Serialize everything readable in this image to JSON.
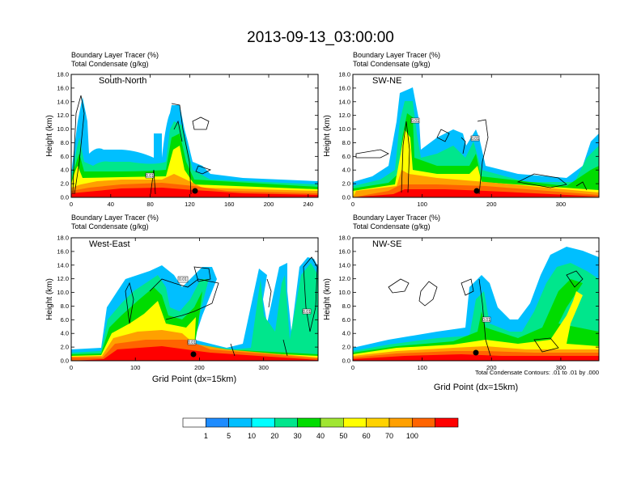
{
  "figure": {
    "title": "2013-09-13_03:00:00",
    "xlabel": "Grid Point (dx=15km)",
    "contour_note": "Total Condensate Contours: .01 to .01 by .000"
  },
  "colorbar": {
    "colors": [
      "#ffffff",
      "#1e8cff",
      "#00bfff",
      "#00ffff",
      "#00e68c",
      "#00dc00",
      "#a0e632",
      "#ffff00",
      "#ffd200",
      "#ffa000",
      "#ff6400",
      "#ff0000"
    ],
    "labels": [
      "1",
      "5",
      "10",
      "20",
      "30",
      "40",
      "50",
      "60",
      "70",
      "100"
    ]
  },
  "panels": [
    {
      "id": "south-north",
      "label": "South-North",
      "line1": "Boundary Layer Tracer   (%)",
      "line2": "Total Condensate   (g/kg)",
      "xticks": [
        "0",
        "40",
        "80",
        "120",
        "160",
        "200",
        "240"
      ],
      "xmax": 250,
      "yticks": [
        "0.0",
        "2.0",
        "4.0",
        "6.0",
        "8.0",
        "10.0",
        "12.0",
        "14.0",
        "16.0",
        "18.0"
      ],
      "ylabel": "Height (km)",
      "contour_labels": [
        "0.01"
      ],
      "dot_x": 125
    },
    {
      "id": "sw-ne",
      "label": "SW-NE",
      "line1": "Boundary Layer Tracer   (%)",
      "line2": "Total Condensate   (g/kg)",
      "xticks": [
        "0",
        "100",
        "200",
        "300"
      ],
      "xmax": 355,
      "yticks": [
        "0.0",
        "2.0",
        "4.0",
        "6.0",
        "8.0",
        "10.0",
        "12.0",
        "14.0",
        "16.0",
        "18.0"
      ],
      "ylabel": "Height (km)",
      "contour_labels": [
        "0.01",
        "0.01"
      ],
      "dot_x": 177
    },
    {
      "id": "west-east",
      "label": "West-East",
      "line1": "Boundary Layer Tracer   (%)",
      "line2": "Total Condensate   (g/kg)",
      "xticks": [
        "0",
        "100",
        "200",
        "300"
      ],
      "xmax": 385,
      "yticks": [
        "0.0",
        "2.0",
        "4.0",
        "6.0",
        "8.0",
        "10.0",
        "12.0",
        "14.0",
        "16.0",
        "18.0"
      ],
      "ylabel": "Height (km)",
      "contour_labels": [
        "0.01",
        "0.01",
        "0.01"
      ],
      "dot_x": 192
    },
    {
      "id": "nw-se",
      "label": "NW-SE",
      "line1": "Boundary Layer Tracer   (%)",
      "line2": "Total Condensate   (g/kg)",
      "xticks": [
        "0",
        "100",
        "200",
        "300"
      ],
      "xmax": 355,
      "yticks": [
        "0.0",
        "2.0",
        "4.0",
        "6.0",
        "8.0",
        "10.0",
        "12.0",
        "14.0",
        "16.0",
        "18.0"
      ],
      "ylabel": "Height (km)",
      "contour_labels": [
        "0.01"
      ],
      "dot_x": 177
    }
  ],
  "chart_data": [
    {
      "type": "heatmap",
      "title": "South-North",
      "xlim": [
        0,
        250
      ],
      "ylim": [
        0,
        18
      ],
      "ylabel": "Height (km)",
      "xlabel": "",
      "color_levels": [
        1,
        5,
        10,
        20,
        30,
        40,
        50,
        60,
        70,
        100
      ]
    },
    {
      "type": "heatmap",
      "title": "SW-NE",
      "xlim": [
        0,
        355
      ],
      "ylim": [
        0,
        18
      ],
      "ylabel": "Height (km)",
      "xlabel": "",
      "color_levels": [
        1,
        5,
        10,
        20,
        30,
        40,
        50,
        60,
        70,
        100
      ]
    },
    {
      "type": "heatmap",
      "title": "West-East",
      "xlim": [
        0,
        385
      ],
      "ylim": [
        0,
        18
      ],
      "ylabel": "Height (km)",
      "xlabel": "Grid Point (dx=15km)",
      "color_levels": [
        1,
        5,
        10,
        20,
        30,
        40,
        50,
        60,
        70,
        100
      ]
    },
    {
      "type": "heatmap",
      "title": "NW-SE",
      "xlim": [
        0,
        355
      ],
      "ylim": [
        0,
        18
      ],
      "ylabel": "Height (km)",
      "xlabel": "Grid Point (dx=15km)",
      "color_levels": [
        1,
        5,
        10,
        20,
        30,
        40,
        50,
        60,
        70,
        100
      ]
    }
  ]
}
